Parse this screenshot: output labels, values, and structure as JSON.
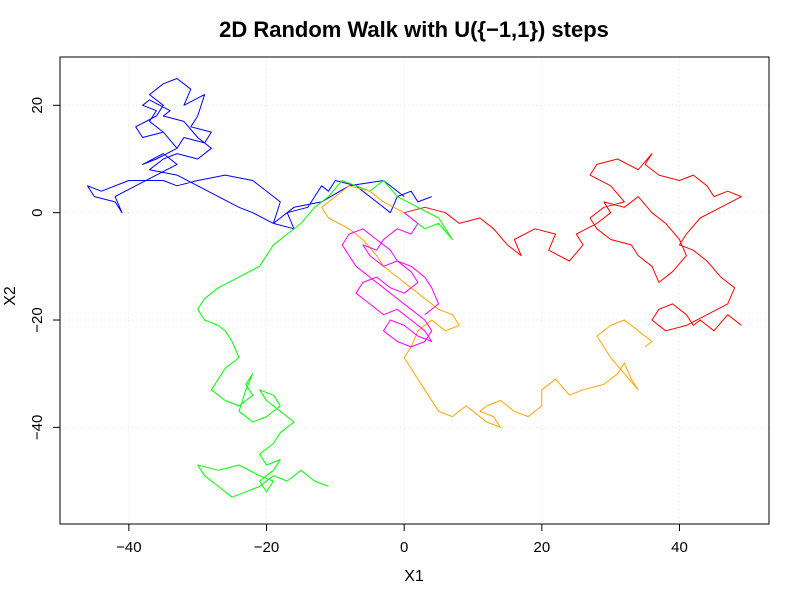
{
  "chart_data": {
    "type": "line",
    "title": "2D Random Walk with U({−1,1}) steps",
    "xlabel": "X1",
    "ylabel": "X2",
    "xlim": [
      -50,
      53
    ],
    "ylim": [
      -58,
      29
    ],
    "xticks": [
      -40,
      -20,
      0,
      20,
      40
    ],
    "yticks": [
      -40,
      -20,
      0,
      20
    ],
    "xtick_labels": [
      "−40",
      "−20",
      "0",
      "20",
      "40"
    ],
    "ytick_labels": [
      "−40",
      "−20",
      "0",
      "20"
    ],
    "grid": true,
    "legend": "none",
    "series": [
      {
        "color": "#0000ff",
        "x": [
          0,
          -3,
          -8,
          -12,
          -16,
          -19,
          -18,
          -22,
          -26,
          -30,
          -33,
          -35,
          -40,
          -44,
          -46,
          -45,
          -42,
          -41,
          -42,
          -39,
          -36,
          -33,
          -35,
          -38,
          -36,
          -33,
          -35,
          -38,
          -39,
          -36,
          -35,
          -37,
          -35,
          -33,
          -31,
          -32,
          -29,
          -30,
          -31,
          -28,
          -29,
          -32,
          -33,
          -35,
          -37,
          -36,
          -38,
          -37,
          -34,
          -35,
          -32,
          -30,
          -28,
          -30,
          -33,
          -35,
          -37,
          -33,
          -30,
          -27,
          -24,
          -22,
          -19,
          -16,
          -17,
          -14,
          -13,
          -12,
          -11,
          -10,
          -7,
          -4,
          -2,
          -1,
          1,
          2,
          4
        ],
        "y": [
          3,
          6,
          5,
          2,
          1,
          -2,
          2,
          6,
          7,
          6,
          5,
          6,
          6,
          4,
          5,
          3,
          2,
          0,
          3,
          5,
          7,
          9,
          11,
          9,
          10,
          12,
          15,
          14,
          16,
          18,
          20,
          22,
          24,
          25,
          23,
          20,
          22,
          18,
          16,
          15,
          13,
          14,
          12,
          15,
          17,
          19,
          20,
          21,
          19,
          18,
          17,
          14,
          12,
          10,
          11,
          10,
          8,
          7,
          5,
          3,
          1,
          0,
          -2,
          -3,
          0,
          1,
          3,
          5,
          4,
          6,
          5,
          2,
          0,
          3,
          4,
          2,
          3
        ]
      },
      {
        "color": "#ff0000",
        "x": [
          0,
          3,
          6,
          8,
          11,
          13,
          15,
          17,
          16,
          19,
          22,
          21,
          24,
          26,
          25,
          28,
          30,
          29,
          32,
          34,
          36,
          38,
          40,
          41,
          39,
          37,
          36,
          34,
          33,
          30,
          28,
          27,
          29,
          32,
          30,
          27,
          28,
          31,
          34,
          36,
          35,
          37,
          40,
          42,
          44,
          45,
          47,
          49,
          46,
          43,
          41,
          40,
          42,
          44,
          46,
          48,
          47,
          44,
          41,
          38,
          36,
          37,
          39,
          41,
          42,
          43,
          45,
          47,
          49
        ],
        "y": [
          0,
          1,
          0,
          -2,
          -1,
          -3,
          -6,
          -8,
          -5,
          -3,
          -4,
          -7,
          -9,
          -6,
          -4,
          -2,
          0,
          2,
          1,
          3,
          0,
          -2,
          -5,
          -8,
          -11,
          -13,
          -10,
          -8,
          -6,
          -5,
          -3,
          -1,
          1,
          2,
          5,
          7,
          9,
          10,
          8,
          11,
          9,
          7,
          6,
          7,
          5,
          3,
          4,
          3,
          1,
          -1,
          -4,
          -6,
          -7,
          -9,
          -12,
          -14,
          -17,
          -19,
          -21,
          -22,
          -20,
          -18,
          -17,
          -19,
          -21,
          -20,
          -22,
          -19,
          -21
        ]
      },
      {
        "color": "#00ff00",
        "x": [
          0,
          3,
          5,
          7,
          5,
          2,
          -1,
          -3,
          -5,
          -7,
          -9,
          -11,
          -13,
          -15,
          -17,
          -19,
          -20,
          -21,
          -24,
          -27,
          -29,
          -30,
          -29,
          -27,
          -26,
          -25,
          -24,
          -26,
          -27,
          -28,
          -26,
          -24,
          -22,
          -23,
          -22,
          -23,
          -24,
          -22,
          -20,
          -18,
          -19,
          -21,
          -20,
          -18,
          -16,
          -18,
          -19,
          -21,
          -20,
          -18,
          -19,
          -20,
          -21,
          -20,
          -19,
          -21,
          -24,
          -27,
          -30,
          -29,
          -27,
          -25,
          -23,
          -21,
          -19,
          -17,
          -15,
          -13,
          -11
        ],
        "y": [
          0,
          -3,
          -2,
          -5,
          -1,
          1,
          3,
          6,
          4,
          5,
          6,
          3,
          1,
          -2,
          -4,
          -6,
          -8,
          -10,
          -12,
          -14,
          -16,
          -18,
          -20,
          -21,
          -22,
          -24,
          -27,
          -29,
          -31,
          -33,
          -35,
          -36,
          -34,
          -32,
          -30,
          -33,
          -37,
          -39,
          -38,
          -36,
          -34,
          -33,
          -35,
          -37,
          -39,
          -41,
          -43,
          -45,
          -47,
          -46,
          -48,
          -49,
          -50,
          -52,
          -50,
          -49,
          -47,
          -48,
          -47,
          -49,
          -51,
          -53,
          -52,
          -51,
          -49,
          -50,
          -48,
          -50,
          -51
        ]
      },
      {
        "color": "#ffa500",
        "x": [
          0,
          -3,
          -5,
          -8,
          -10,
          -12,
          -11,
          -8,
          -6,
          -4,
          -3,
          -1,
          1,
          3,
          5,
          7,
          8,
          6,
          4,
          2,
          1,
          0,
          1,
          2,
          3,
          4,
          5,
          7,
          9,
          10,
          12,
          14,
          13,
          11,
          12,
          14,
          16,
          18,
          20,
          20,
          22,
          24,
          26,
          29,
          31,
          32,
          33,
          34,
          32,
          30,
          29,
          28,
          30,
          32,
          34,
          36,
          35
        ],
        "y": [
          0,
          2,
          4,
          5,
          3,
          1,
          -1,
          -3,
          -5,
          -8,
          -10,
          -12,
          -14,
          -16,
          -18,
          -19,
          -21,
          -22,
          -20,
          -22,
          -25,
          -27,
          -29,
          -31,
          -33,
          -35,
          -37,
          -38,
          -36,
          -37,
          -39,
          -40,
          -38,
          -37,
          -36,
          -35,
          -37,
          -38,
          -36,
          -33,
          -31,
          -34,
          -33,
          -32,
          -30,
          -28,
          -31,
          -33,
          -30,
          -27,
          -25,
          -23,
          -21,
          -20,
          -22,
          -24,
          -25
        ]
      },
      {
        "color": "#ff00ff",
        "x": [
          0,
          2,
          1,
          -1,
          -3,
          -4,
          -6,
          -5,
          -3,
          -1,
          1,
          2,
          0,
          -2,
          -4,
          -6,
          -7,
          -5,
          -3,
          -1,
          1,
          3,
          4,
          2,
          0,
          -2,
          -3,
          -1,
          1,
          3,
          4,
          3,
          1,
          -1,
          -3,
          -5,
          -7,
          -9,
          -8,
          -6,
          -4,
          -2,
          -1,
          1,
          3,
          4,
          5,
          3
        ],
        "y": [
          0,
          -2,
          -4,
          -3,
          -5,
          -7,
          -6,
          -8,
          -10,
          -9,
          -11,
          -13,
          -15,
          -14,
          -12,
          -13,
          -15,
          -17,
          -19,
          -18,
          -20,
          -22,
          -24,
          -23,
          -21,
          -20,
          -22,
          -24,
          -25,
          -24,
          -22,
          -20,
          -18,
          -16,
          -14,
          -12,
          -10,
          -6,
          -4,
          -3,
          -5,
          -7,
          -9,
          -10,
          -12,
          -14,
          -17,
          -19
        ]
      }
    ]
  }
}
